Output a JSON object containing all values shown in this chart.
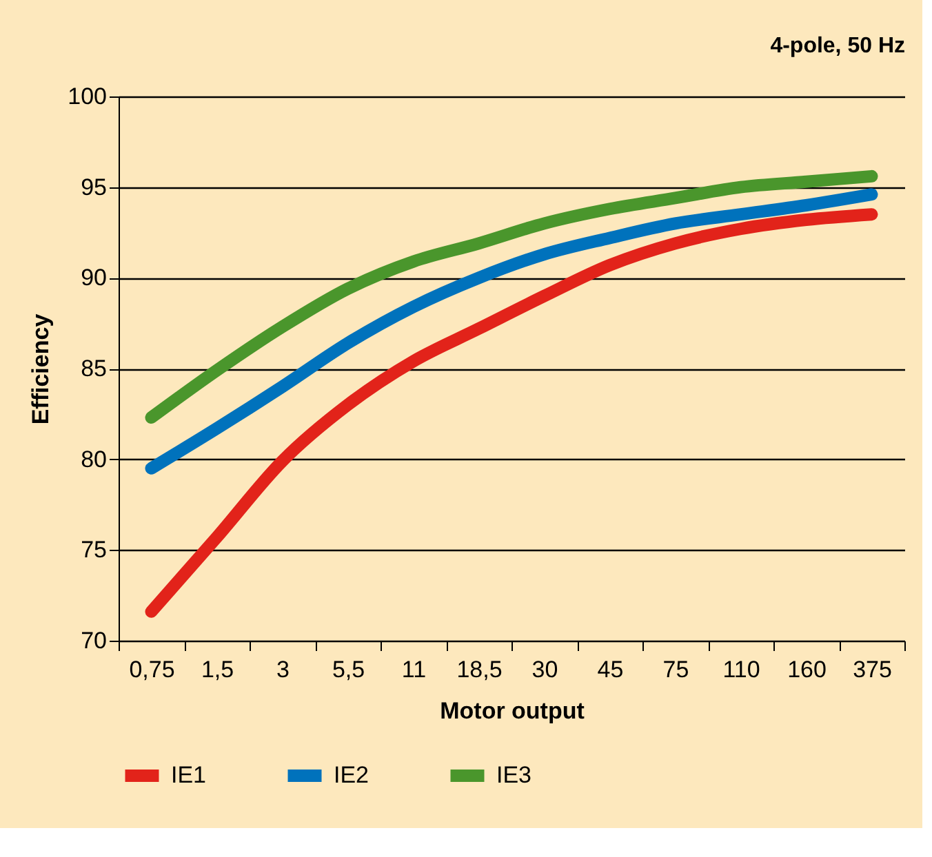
{
  "chart_data": {
    "type": "line",
    "title": "4-pole, 50 Hz",
    "xlabel": "Motor output",
    "ylabel": "Efficiency",
    "ylim": [
      70,
      100
    ],
    "yticks": [
      70,
      75,
      80,
      85,
      90,
      95,
      100
    ],
    "categories": [
      "0,75",
      "1,5",
      "3",
      "5,5",
      "11",
      "18,5",
      "30",
      "45",
      "75",
      "110",
      "160",
      "375"
    ],
    "series": [
      {
        "name": "IE1",
        "color": "#e2231a",
        "values": [
          71.6,
          75.7,
          79.9,
          83.0,
          85.4,
          87.2,
          89.0,
          90.7,
          91.9,
          92.7,
          93.2,
          93.5
        ]
      },
      {
        "name": "IE2",
        "color": "#0072bc",
        "values": [
          79.5,
          81.7,
          84.0,
          86.4,
          88.4,
          90.0,
          91.3,
          92.2,
          93.0,
          93.5,
          94.0,
          94.6
        ]
      },
      {
        "name": "IE3",
        "color": "#4a962c",
        "values": [
          82.3,
          84.9,
          87.3,
          89.4,
          90.9,
          91.9,
          93.0,
          93.8,
          94.4,
          95.0,
          95.3,
          95.6
        ]
      }
    ],
    "grid": "y",
    "legend": "bottom",
    "marker": "none",
    "line_style": "solid"
  }
}
